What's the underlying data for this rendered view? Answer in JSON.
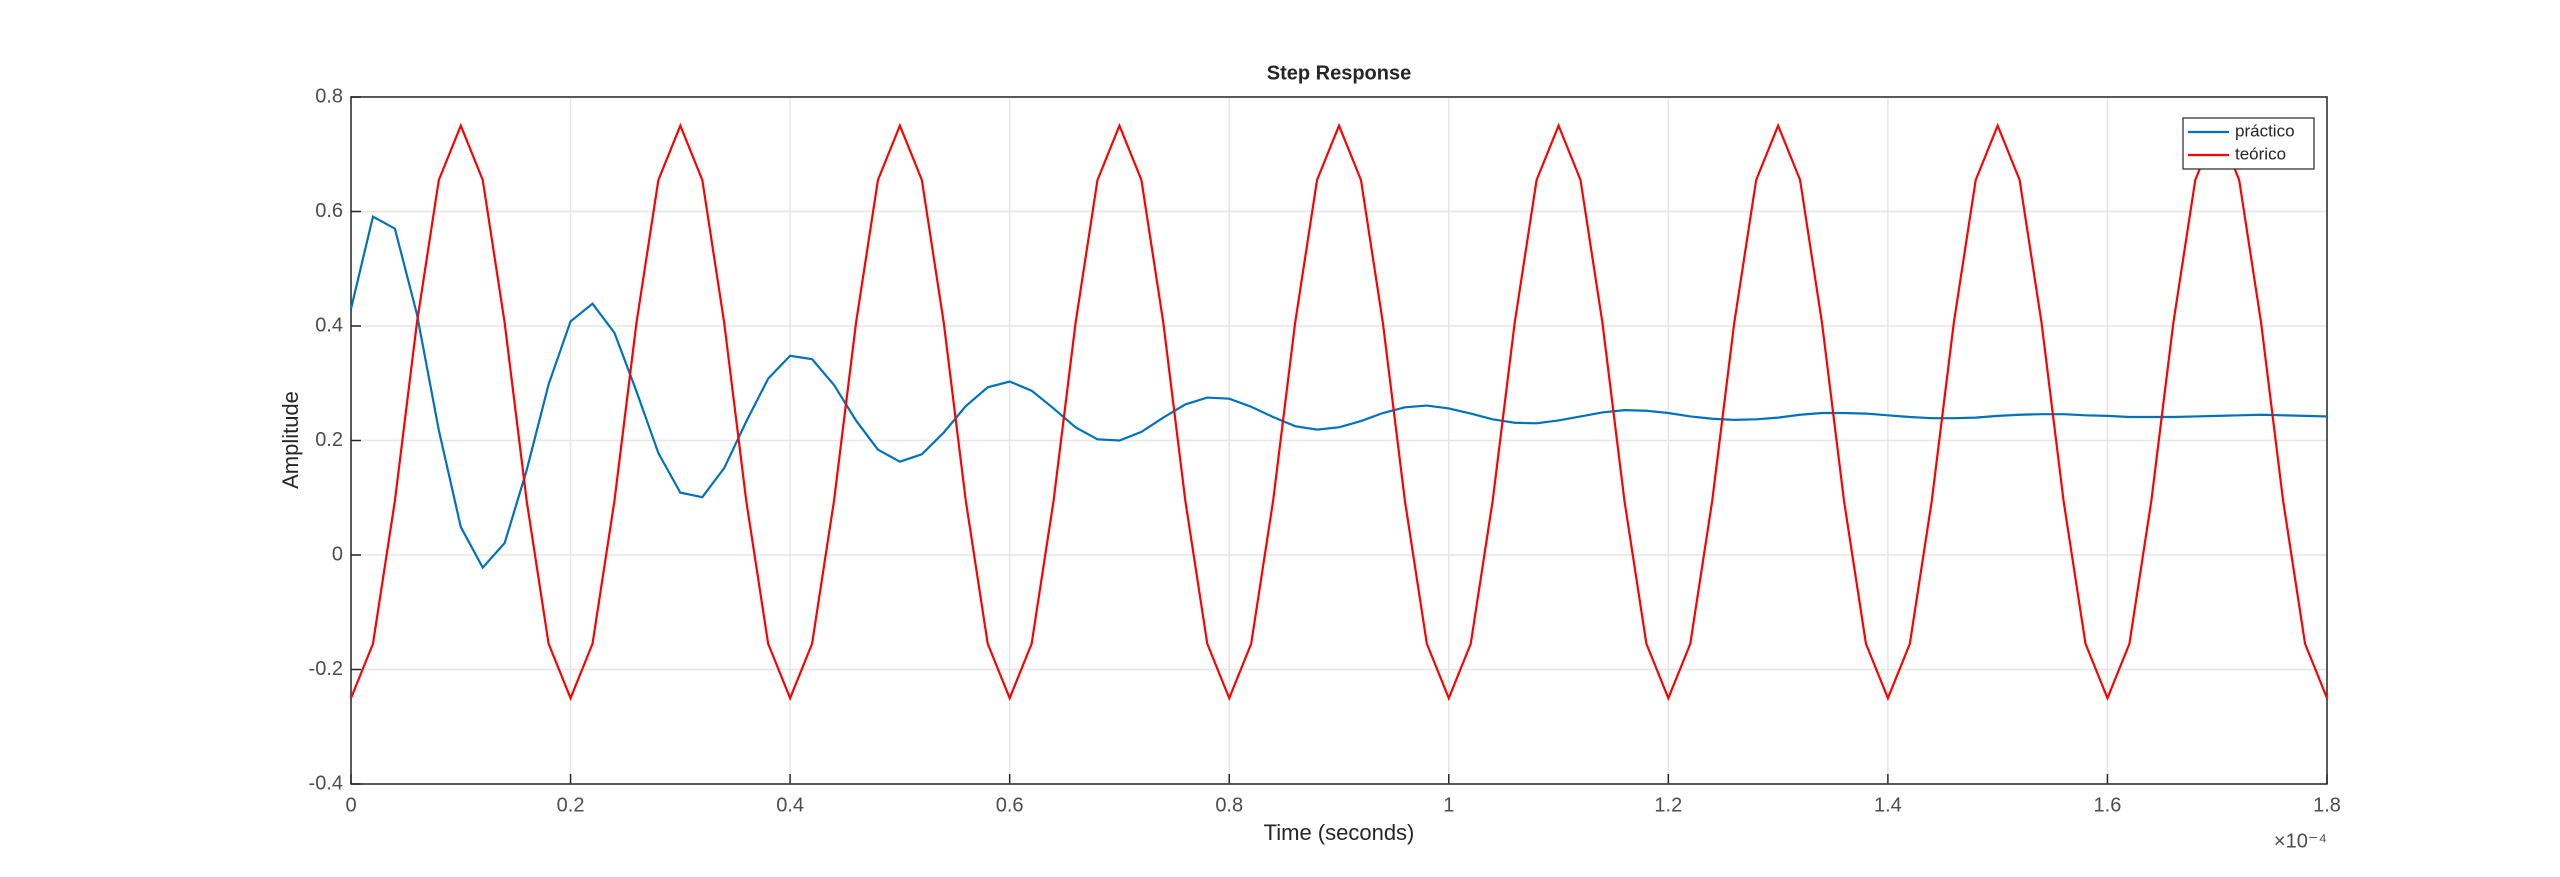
{
  "chart_data": {
    "type": "line",
    "title": "Step Response",
    "xlabel": "Time (seconds)",
    "ylabel": "Amplitude",
    "x_exponent_label": "×10⁻⁴",
    "x": [
      0,
      0.02,
      0.04,
      0.06,
      0.08,
      0.1,
      0.12,
      0.14,
      0.16,
      0.18,
      0.2,
      0.22,
      0.24,
      0.26,
      0.28,
      0.3,
      0.32,
      0.34,
      0.36,
      0.38,
      0.4,
      0.42,
      0.44,
      0.46,
      0.48,
      0.5,
      0.52,
      0.54,
      0.56,
      0.58,
      0.6,
      0.62,
      0.64,
      0.66,
      0.68,
      0.7,
      0.72,
      0.74,
      0.76,
      0.78,
      0.8,
      0.82,
      0.84,
      0.86,
      0.88,
      0.9,
      0.92,
      0.94,
      0.96,
      0.98,
      1,
      1.02,
      1.04,
      1.06,
      1.08,
      1.1,
      1.12,
      1.14,
      1.16,
      1.18,
      1.2,
      1.22,
      1.24,
      1.26,
      1.28,
      1.3,
      1.32,
      1.34,
      1.36,
      1.38,
      1.4,
      1.42,
      1.44,
      1.46,
      1.48,
      1.5,
      1.52,
      1.54,
      1.56,
      1.58,
      1.6,
      1.62,
      1.64,
      1.66,
      1.68,
      1.7,
      1.72,
      1.74,
      1.76,
      1.78,
      1.8
    ],
    "series": [
      {
        "name": "práctico",
        "color": "#0072bd",
        "values": [
          0.43,
          0.591,
          0.57,
          0.421,
          0.218,
          0.049,
          -0.022,
          0.021,
          0.148,
          0.298,
          0.408,
          0.439,
          0.388,
          0.286,
          0.178,
          0.109,
          0.101,
          0.152,
          0.233,
          0.308,
          0.348,
          0.342,
          0.297,
          0.235,
          0.184,
          0.163,
          0.176,
          0.214,
          0.26,
          0.293,
          0.303,
          0.287,
          0.256,
          0.223,
          0.202,
          0.2,
          0.215,
          0.24,
          0.263,
          0.275,
          0.273,
          0.259,
          0.241,
          0.225,
          0.219,
          0.223,
          0.234,
          0.248,
          0.258,
          0.261,
          0.256,
          0.247,
          0.237,
          0.231,
          0.23,
          0.235,
          0.242,
          0.249,
          0.253,
          0.252,
          0.248,
          0.242,
          0.238,
          0.236,
          0.237,
          0.24,
          0.245,
          0.248,
          0.248,
          0.247,
          0.244,
          0.241,
          0.239,
          0.239,
          0.24,
          0.243,
          0.245,
          0.246,
          0.246,
          0.244,
          0.243,
          0.241,
          0.241,
          0.241,
          0.242,
          0.243,
          0.244,
          0.245,
          0.244,
          0.243,
          0.242
        ]
      },
      {
        "name": "teórico",
        "color": "#ff0000",
        "values": [
          -0.25,
          -0.155,
          0.095,
          0.405,
          0.655,
          0.75,
          0.655,
          0.405,
          0.095,
          -0.155,
          -0.25,
          -0.155,
          0.095,
          0.405,
          0.655,
          0.75,
          0.655,
          0.405,
          0.095,
          -0.155,
          -0.25,
          -0.155,
          0.095,
          0.405,
          0.655,
          0.75,
          0.655,
          0.405,
          0.095,
          -0.155,
          -0.25,
          -0.155,
          0.095,
          0.405,
          0.655,
          0.75,
          0.655,
          0.405,
          0.095,
          -0.155,
          -0.25,
          -0.155,
          0.095,
          0.405,
          0.655,
          0.75,
          0.655,
          0.405,
          0.095,
          -0.155,
          -0.25,
          -0.155,
          0.095,
          0.405,
          0.655,
          0.75,
          0.655,
          0.405,
          0.095,
          -0.155,
          -0.25,
          -0.155,
          0.095,
          0.405,
          0.655,
          0.75,
          0.655,
          0.405,
          0.095,
          -0.155,
          -0.25,
          -0.155,
          0.095,
          0.405,
          0.655,
          0.75,
          0.655,
          0.405,
          0.095,
          -0.155,
          -0.25,
          -0.155,
          0.095,
          0.405,
          0.655,
          0.75,
          0.655,
          0.405,
          0.095,
          -0.155,
          -0.25
        ]
      }
    ],
    "xlim": [
      0,
      1.8
    ],
    "xticks": [
      0,
      0.2,
      0.4,
      0.6,
      0.8,
      1,
      1.2,
      1.4,
      1.6,
      1.8
    ],
    "ylim": [
      -0.4,
      0.8
    ],
    "yticks": [
      -0.4,
      -0.2,
      0,
      0.2,
      0.4,
      0.6,
      0.8
    ],
    "grid": true,
    "legend": "northeast"
  }
}
